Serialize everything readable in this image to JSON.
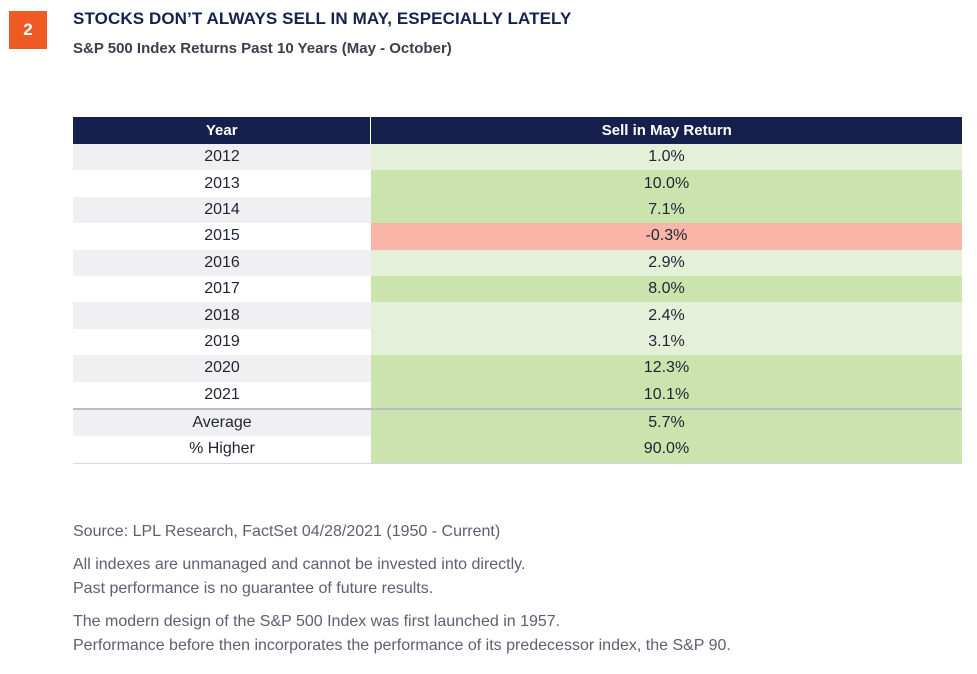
{
  "badge": {
    "label": "2"
  },
  "header": {
    "title": "STOCKS DON’T ALWAYS SELL IN MAY, ESPECIALLY LATELY",
    "subtitle": "S&P 500 Index Returns Past 10 Years (May - October)"
  },
  "colors": {
    "badge": "#ef5a24",
    "header_bg": "#15204d",
    "row_light": "#f0f0f2",
    "row_white": "#ffffff",
    "positive_light": "#e4f0d7",
    "positive_strong": "#cbe3ad",
    "negative": "#f9b6a8"
  },
  "chart_data": {
    "type": "table",
    "title": "STOCKS DON’T ALWAYS SELL IN MAY, ESPECIALLY LATELY",
    "subtitle": "S&P 500 Index Returns Past 10 Years (May - October)",
    "columns": [
      "Year",
      "Sell in May Return"
    ],
    "rows": [
      {
        "label": "2012",
        "value": "1.0%",
        "num": 1.0
      },
      {
        "label": "2013",
        "value": "10.0%",
        "num": 10.0
      },
      {
        "label": "2014",
        "value": "7.1%",
        "num": 7.1
      },
      {
        "label": "2015",
        "value": "-0.3%",
        "num": -0.3
      },
      {
        "label": "2016",
        "value": "2.9%",
        "num": 2.9
      },
      {
        "label": "2017",
        "value": "8.0%",
        "num": 8.0
      },
      {
        "label": "2018",
        "value": "2.4%",
        "num": 2.4
      },
      {
        "label": "2019",
        "value": "3.1%",
        "num": 3.1
      },
      {
        "label": "2020",
        "value": "12.3%",
        "num": 12.3
      },
      {
        "label": "2021",
        "value": "10.1%",
        "num": 10.1
      }
    ],
    "summary": [
      {
        "label": "Average",
        "value": "5.7%",
        "num": 5.7
      },
      {
        "label": "% Higher",
        "value": "90.0%",
        "num": 90.0
      }
    ]
  },
  "notes": {
    "source": "Source: LPL Research, FactSet  04/28/2021 (1950 - Current)",
    "disclaimer_1": "All indexes are unmanaged and cannot be invested into directly.",
    "disclaimer_2": "Past performance is no guarantee of future results.",
    "design_1": "The modern design of the S&P 500 Index was first launched in 1957.",
    "design_2": "Performance before then incorporates the performance of its predecessor index, the S&P 90."
  }
}
